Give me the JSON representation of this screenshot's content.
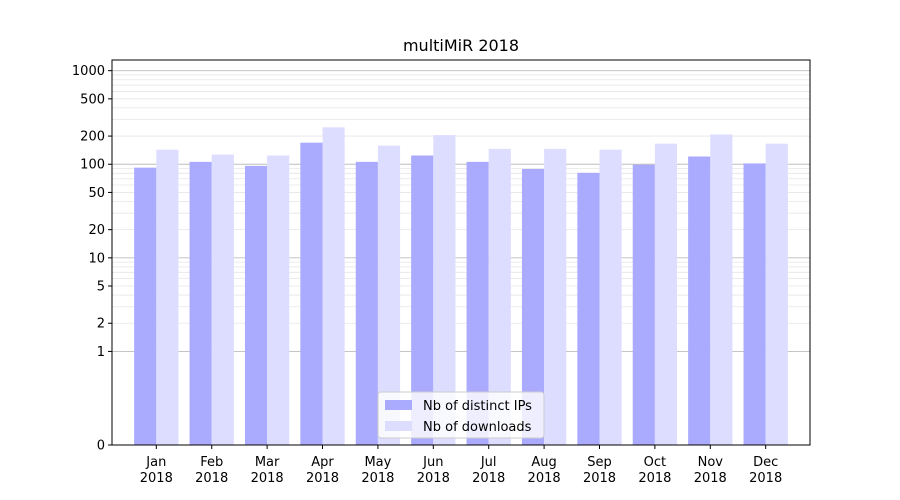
{
  "chart_data": {
    "type": "bar",
    "title": "multiMiR 2018",
    "xlabel": "",
    "ylabel": "",
    "y_scale": "symlog",
    "ylim": [
      0,
      1300
    ],
    "y_ticks": [
      0,
      1,
      2,
      5,
      10,
      20,
      50,
      100,
      200,
      500,
      1000
    ],
    "y_tick_labels": [
      "0",
      "1",
      "2",
      "5",
      "10",
      "20",
      "50",
      "100",
      "200",
      "500",
      "1000"
    ],
    "categories": [
      [
        "Jan",
        "2018"
      ],
      [
        "Feb",
        "2018"
      ],
      [
        "Mar",
        "2018"
      ],
      [
        "Apr",
        "2018"
      ],
      [
        "May",
        "2018"
      ],
      [
        "Jun",
        "2018"
      ],
      [
        "Jul",
        "2018"
      ],
      [
        "Aug",
        "2018"
      ],
      [
        "Sep",
        "2018"
      ],
      [
        "Oct",
        "2018"
      ],
      [
        "Nov",
        "2018"
      ],
      [
        "Dec",
        "2018"
      ]
    ],
    "series": [
      {
        "name": "Nb of distinct IPs",
        "color": "#aaaaff",
        "values": [
          92,
          106,
          96,
          170,
          106,
          124,
          106,
          89,
          81,
          99,
          121,
          102
        ]
      },
      {
        "name": "Nb of downloads",
        "color": "#ddddff",
        "values": [
          143,
          127,
          124,
          248,
          158,
          205,
          146,
          146,
          143,
          166,
          208,
          166
        ]
      }
    ],
    "grid": true,
    "legend_position": "bottom-center"
  }
}
